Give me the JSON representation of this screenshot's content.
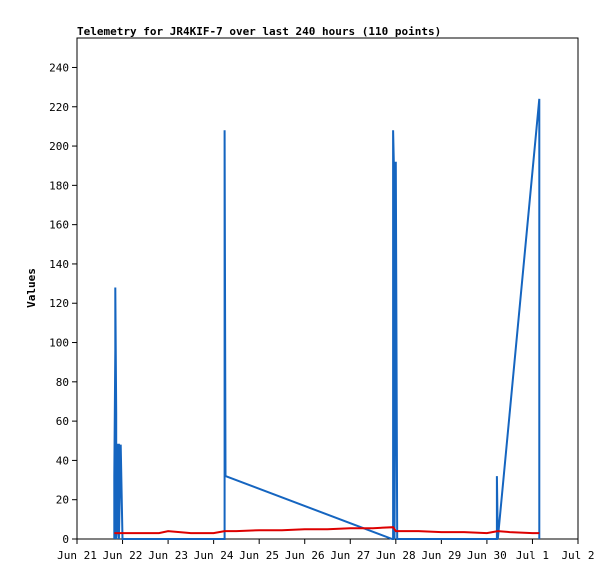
{
  "chart_data": {
    "type": "line",
    "title": "Telemetry for JR4KIF-7 over last 240 hours (110 points)",
    "xlabel": "",
    "ylabel": "Values",
    "ylim": [
      0,
      255
    ],
    "yticks": [
      0,
      20,
      40,
      60,
      80,
      100,
      120,
      140,
      160,
      180,
      200,
      220,
      240
    ],
    "xticks": [
      "Jun 21",
      "Jun 22",
      "Jun 23",
      "Jun 24",
      "Jun 25",
      "Jun 26",
      "Jun 27",
      "Jun 28",
      "Jun 29",
      "Jun 30",
      "Jul 1",
      "Jul 2"
    ],
    "grid": false,
    "colors": {
      "series_a": "#1565c0",
      "series_b": "#dd0000",
      "frame": "#000000"
    },
    "series": [
      {
        "color": "#1565c0",
        "x": [
          21.82,
          21.82,
          21.84,
          21.84,
          21.86,
          21.86,
          21.88,
          21.88,
          21.92,
          21.92,
          21.96,
          21.96,
          22.0,
          22.0,
          24.24,
          24.24,
          24.26,
          27.92,
          27.94,
          27.94,
          27.97,
          27.97,
          28.0,
          28.0,
          28.03,
          28.03,
          30.22,
          30.22,
          30.24,
          31.15,
          31.15
        ],
        "y": [
          0,
          32,
          96,
          128,
          64,
          0,
          4,
          48,
          48,
          0,
          48,
          48,
          0,
          0,
          0,
          208,
          32,
          0,
          0,
          208,
          176,
          0,
          144,
          192,
          0,
          0,
          0,
          32,
          0,
          224,
          0
        ]
      },
      {
        "color": "#dd0000",
        "x": [
          21.82,
          22.0,
          22.5,
          22.8,
          23.0,
          23.5,
          24.0,
          24.24,
          24.5,
          25.0,
          25.5,
          26.0,
          26.5,
          27.0,
          27.5,
          27.94,
          28.0,
          28.5,
          29.0,
          29.5,
          30.0,
          30.24,
          30.5,
          31.0,
          31.15
        ],
        "y": [
          3,
          3,
          3,
          3,
          4,
          3,
          3,
          4,
          4,
          4.5,
          4.5,
          5,
          5,
          5.5,
          5.5,
          6,
          4,
          4,
          3.5,
          3.5,
          3,
          4,
          3.5,
          3,
          3
        ]
      }
    ]
  }
}
